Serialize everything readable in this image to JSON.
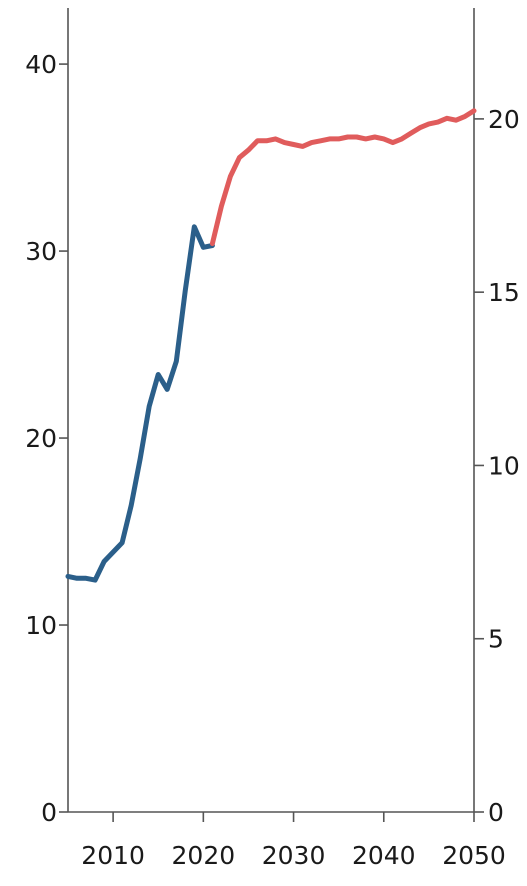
{
  "chart_data": {
    "type": "line",
    "title": "",
    "xlabel": "",
    "ylabel": "",
    "xlim": [
      2005,
      2050
    ],
    "ylim": [
      0,
      43
    ],
    "ylim_right": [
      0,
      23.2
    ],
    "grid": false,
    "legend": "none",
    "x_ticks": [
      2010,
      2020,
      2030,
      2040,
      2050
    ],
    "y_ticks_left": [
      0,
      10,
      20,
      30,
      40
    ],
    "y_ticks_right": [
      0,
      5,
      10,
      15,
      20
    ],
    "series": [
      {
        "color": "#2b5f8a",
        "x": [
          2005,
          2006,
          2007,
          2008,
          2009,
          2010,
          2011,
          2012,
          2013,
          2014,
          2015,
          2016,
          2017,
          2018,
          2019,
          2020,
          2021
        ],
        "y": [
          12.6,
          12.5,
          12.5,
          12.4,
          13.4,
          13.9,
          14.4,
          16.4,
          18.9,
          21.7,
          23.4,
          22.6,
          24.1,
          27.9,
          31.3,
          30.2,
          30.3
        ]
      },
      {
        "color": "#e05c5c",
        "x": [
          2021,
          2022,
          2023,
          2024,
          2025,
          2026,
          2027,
          2028,
          2029,
          2030,
          2031,
          2032,
          2033,
          2034,
          2035,
          2036,
          2037,
          2038,
          2039,
          2040,
          2041,
          2042,
          2043,
          2044,
          2045,
          2046,
          2047,
          2048,
          2049,
          2050
        ],
        "y": [
          30.4,
          32.4,
          34.0,
          35.0,
          35.4,
          35.9,
          35.9,
          36.0,
          35.8,
          35.7,
          35.6,
          35.8,
          35.9,
          36.0,
          36.0,
          36.1,
          36.1,
          36.0,
          36.1,
          36.0,
          35.8,
          36.0,
          36.3,
          36.6,
          36.8,
          36.9,
          37.1,
          37.0,
          37.2,
          37.5
        ]
      }
    ]
  }
}
